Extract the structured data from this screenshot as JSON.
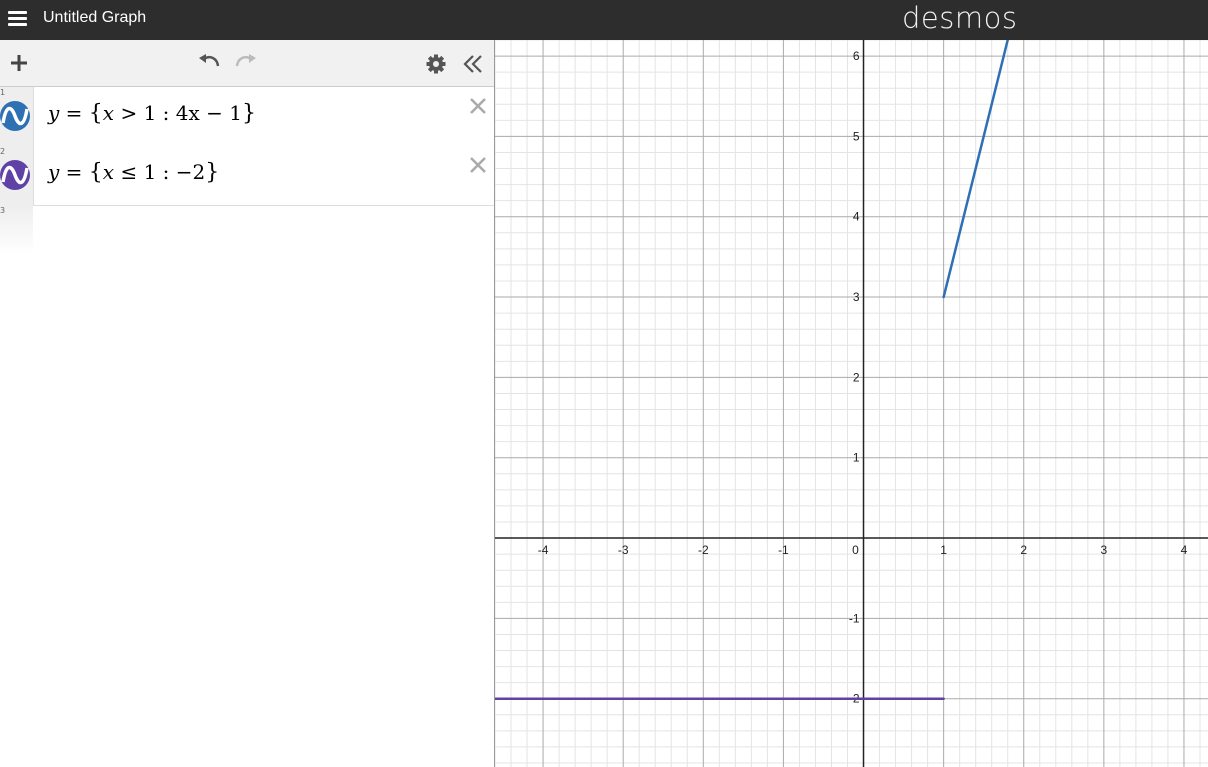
{
  "app": {
    "title": "Untitled Graph",
    "brand": "desmos"
  },
  "toolbar": {
    "add_icon": "plus-icon",
    "undo_icon": "undo-icon",
    "redo_icon": "redo-icon",
    "settings_icon": "gear-icon",
    "collapse_icon": "double-chevron-left-icon"
  },
  "expressions": [
    {
      "index": "1",
      "color": "#2d70b3",
      "lhs": "y",
      "eq": "=",
      "open": "{",
      "cond_var": "x",
      "cond_op": ">",
      "cond_val": "1",
      "colon": ":",
      "body": "4x − 1",
      "close": "}"
    },
    {
      "index": "2",
      "color": "#6042a6",
      "lhs": "y",
      "eq": "=",
      "open": "{",
      "cond_var": "x",
      "cond_op": "≤",
      "cond_val": "1",
      "colon": ":",
      "body": "−2",
      "close": "}"
    },
    {
      "index": "3"
    }
  ],
  "graph": {
    "x_ticks": [
      "-4",
      "-3",
      "-2",
      "-1",
      "0",
      "1",
      "2",
      "3",
      "4"
    ],
    "y_ticks": [
      "6",
      "5",
      "4",
      "3",
      "2",
      "1",
      "-1",
      "-2"
    ],
    "xlim": [
      -4.6,
      4.3
    ],
    "ylim": [
      -2.85,
      6.2
    ]
  },
  "chart_data": {
    "type": "line",
    "series": [
      {
        "color": "#2d70b3",
        "x": [
          1,
          1.8
        ],
        "y": [
          3,
          6.2
        ]
      },
      {
        "color": "#6042a6",
        "x": [
          -4.6,
          1
        ],
        "y": [
          -2,
          -2
        ]
      }
    ],
    "xlim": [
      -4.6,
      4.3
    ],
    "ylim": [
      -2.85,
      6.2
    ],
    "grid": true
  }
}
